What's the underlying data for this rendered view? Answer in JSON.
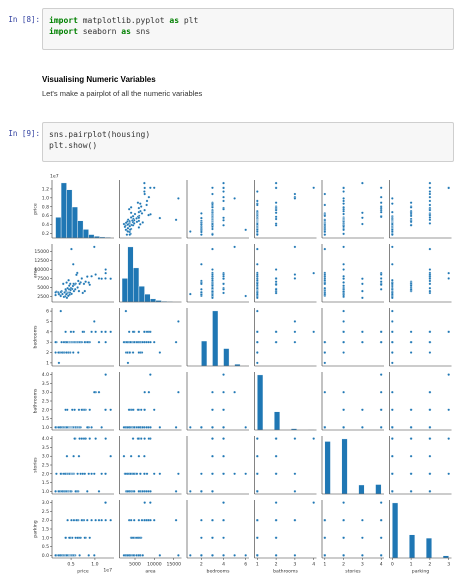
{
  "cells": [
    {
      "prompt": "In [8]:",
      "code": [
        [
          {
            "text": "import",
            "style": "kw"
          },
          {
            "text": " matplotlib.pyplot "
          },
          {
            "text": "as",
            "style": "kw"
          },
          {
            "text": " plt"
          }
        ],
        [
          {
            "text": "import",
            "style": "kw"
          },
          {
            "text": " seaborn "
          },
          {
            "text": "as",
            "style": "kw"
          },
          {
            "text": " sns"
          }
        ]
      ]
    },
    {
      "heading": "Visualising Numeric Variables",
      "text": "Let's make a pairplot of all the numeric variables"
    },
    {
      "prompt": "In [9]:",
      "code": [
        [
          {
            "text": "sns.pairplot(housing)"
          }
        ],
        [
          {
            "text": "plt.show()"
          }
        ]
      ]
    }
  ],
  "chart_data": {
    "type": "pairplot",
    "color": "#1f77b4",
    "offset_label": "1e7",
    "variables": [
      {
        "label": "price",
        "lim": [
          0.1,
          1.4
        ],
        "xticks": [
          0.5,
          {
            "value": 1,
            "label": "1.0"
          }
        ],
        "yticks": [
          0.2,
          0.4,
          0.6,
          0.8,
          {
            "value": 1,
            "label": "1.0"
          },
          1.2
        ]
      },
      {
        "label": "area",
        "lim": [
          1000,
          17000
        ],
        "xticks": [
          5000,
          10000,
          15000
        ],
        "yticks": [
          2500,
          5000,
          7500,
          10000,
          12500,
          15000
        ]
      },
      {
        "label": "bedrooms",
        "lim": [
          0.7,
          6.3
        ],
        "xticks": [
          2,
          4,
          6
        ],
        "yticks": [
          1,
          2,
          3,
          4,
          5,
          6
        ]
      },
      {
        "label": "bathrooms",
        "lim": [
          0.85,
          4.15
        ],
        "xticks": [
          1,
          2,
          3,
          4
        ],
        "yticks": [
          {
            "value": 1,
            "label": "1.0"
          },
          1.5,
          {
            "value": 2,
            "label": "2.0"
          },
          2.5,
          {
            "value": 3,
            "label": "3.0"
          },
          3.5,
          {
            "value": 4,
            "label": "4.0"
          }
        ]
      },
      {
        "label": "stories",
        "lim": [
          0.85,
          4.15
        ],
        "xticks": [
          1,
          2,
          3,
          4
        ],
        "yticks": [
          {
            "value": 1,
            "label": "1.0"
          },
          1.5,
          {
            "value": 2,
            "label": "2.0"
          },
          2.5,
          {
            "value": 3,
            "label": "3.0"
          },
          3.5,
          {
            "value": 4,
            "label": "4.0"
          }
        ]
      },
      {
        "label": "parking",
        "lim": [
          -0.15,
          3.15
        ],
        "xticks": [
          0,
          1,
          2,
          3
        ],
        "yticks": [
          {
            "value": 0,
            "label": "0.0"
          },
          0.5,
          {
            "value": 1,
            "label": "1.0"
          },
          1.5,
          {
            "value": 2,
            "label": "2.0"
          },
          2.5,
          {
            "value": 3,
            "label": "3.0"
          }
        ]
      }
    ],
    "histograms": [
      {
        "bins": [
          0.175,
          0.2905,
          0.406,
          0.5215,
          0.637,
          0.7525,
          0.868,
          0.9835,
          1.099,
          1.2145,
          1.33
        ],
        "counts": [
          60,
          160,
          140,
          90,
          50,
          25,
          10,
          5,
          3,
          2
        ]
      },
      {
        "bins": [
          1650,
          3105,
          4560,
          6015,
          7470,
          8925,
          10380,
          11835,
          13290,
          14745,
          16200
        ],
        "counts": [
          90,
          210,
          130,
          60,
          30,
          12,
          6,
          3,
          2,
          1
        ]
      },
      {
        "bins": [
          1,
          1.5,
          2,
          2.5,
          3,
          3.5,
          4,
          4.5,
          5,
          5.5,
          6
        ],
        "counts": [
          2,
          0,
          136,
          0,
          300,
          0,
          95,
          0,
          10,
          2
        ]
      },
      {
        "bins": [
          1,
          1.3,
          1.6,
          1.9,
          2.2,
          2.5,
          2.8,
          3.1,
          3.4,
          3.7,
          4
        ],
        "counts": [
          401,
          0,
          0,
          133,
          0,
          0,
          10,
          0,
          0,
          1
        ]
      },
      {
        "bins": [
          1,
          1.3,
          1.6,
          1.9,
          2.2,
          2.5,
          2.8,
          3.1,
          3.4,
          3.7,
          4
        ],
        "counts": [
          227,
          0,
          0,
          238,
          0,
          0,
          39,
          0,
          0,
          41
        ]
      },
      {
        "bins": [
          0,
          0.3,
          0.6,
          0.9,
          1.2,
          1.5,
          1.8,
          2.1,
          2.4,
          2.7,
          3
        ],
        "counts": [
          299,
          0,
          0,
          126,
          0,
          0,
          108,
          0,
          0,
          12
        ]
      }
    ],
    "rows": [
      [
        1.33,
        7420,
        4,
        2,
        3,
        2
      ],
      [
        1.225,
        8960,
        4,
        4,
        4,
        3
      ],
      [
        1.225,
        9960,
        3,
        2,
        2,
        2
      ],
      [
        1.2215,
        7500,
        4,
        2,
        2,
        3
      ],
      [
        1.141,
        7420,
        4,
        1,
        2,
        2
      ],
      [
        1.085,
        7500,
        3,
        3,
        1,
        2
      ],
      [
        1.015,
        8580,
        4,
        3,
        4,
        2
      ],
      [
        0.987,
        16200,
        5,
        3,
        2,
        0
      ],
      [
        0.93,
        8100,
        4,
        1,
        2,
        2
      ],
      [
        0.891,
        5750,
        3,
        2,
        4,
        1
      ],
      [
        0.87,
        6360,
        3,
        1,
        2,
        0
      ],
      [
        0.84,
        8000,
        3,
        1,
        1,
        2
      ],
      [
        0.805,
        6600,
        3,
        2,
        4,
        1
      ],
      [
        0.7875,
        4000,
        3,
        2,
        2,
        1
      ],
      [
        0.77,
        6000,
        4,
        2,
        4,
        2
      ],
      [
        0.745,
        3500,
        4,
        2,
        2,
        2
      ],
      [
        0.7245,
        7480,
        3,
        2,
        4,
        2
      ],
      [
        0.7,
        6400,
        3,
        1,
        2,
        1
      ],
      [
        0.679,
        6000,
        3,
        1,
        4,
        0
      ],
      [
        0.665,
        4000,
        3,
        2,
        3,
        1
      ],
      [
        0.651,
        6800,
        2,
        1,
        1,
        2
      ],
      [
        0.637,
        5000,
        3,
        1,
        2,
        1
      ],
      [
        0.63,
        9000,
        3,
        1,
        1,
        2
      ],
      [
        0.6125,
        8500,
        3,
        1,
        1,
        2
      ],
      [
        0.595,
        6060,
        3,
        1,
        1,
        1
      ],
      [
        0.5873,
        4500,
        3,
        1,
        4,
        0
      ],
      [
        0.574,
        5800,
        3,
        2,
        4,
        0
      ],
      [
        0.56,
        4000,
        3,
        1,
        2,
        2
      ],
      [
        0.553,
        6000,
        4,
        1,
        3,
        0
      ],
      [
        0.546,
        11410,
        2,
        1,
        2,
        0
      ],
      [
        0.539,
        5400,
        3,
        1,
        2,
        0
      ],
      [
        0.525,
        4600,
        3,
        2,
        2,
        1
      ],
      [
        0.511,
        3240,
        3,
        1,
        2,
        0
      ],
      [
        0.5075,
        15600,
        3,
        1,
        1,
        2
      ],
      [
        0.497,
        4800,
        4,
        1,
        2,
        0
      ],
      [
        0.49,
        4320,
        3,
        1,
        2,
        1
      ],
      [
        0.483,
        6000,
        2,
        1,
        1,
        1
      ],
      [
        0.476,
        3600,
        3,
        1,
        2,
        0
      ],
      [
        0.469,
        3000,
        3,
        1,
        2,
        0
      ],
      [
        0.462,
        5500,
        3,
        1,
        2,
        1
      ],
      [
        0.455,
        4500,
        2,
        1,
        1,
        0
      ],
      [
        0.448,
        7000,
        3,
        1,
        1,
        0
      ],
      [
        0.441,
        2700,
        2,
        1,
        1,
        0
      ],
      [
        0.434,
        3600,
        3,
        1,
        2,
        0
      ],
      [
        0.427,
        4800,
        3,
        1,
        1,
        2
      ],
      [
        0.42,
        3460,
        3,
        2,
        2,
        0
      ],
      [
        0.413,
        3300,
        2,
        1,
        1,
        0
      ],
      [
        0.406,
        6360,
        2,
        1,
        1,
        0
      ],
      [
        0.399,
        3150,
        3,
        1,
        2,
        0
      ],
      [
        0.392,
        4100,
        3,
        1,
        1,
        1
      ],
      [
        0.385,
        4500,
        4,
        2,
        2,
        1
      ],
      [
        0.378,
        2550,
        3,
        1,
        2,
        0
      ],
      [
        0.364,
        3640,
        2,
        1,
        1,
        0
      ],
      [
        0.35,
        2400,
        3,
        1,
        2,
        0
      ],
      [
        0.336,
        6000,
        2,
        1,
        1,
        0
      ],
      [
        0.3185,
        3180,
        2,
        1,
        1,
        0
      ],
      [
        0.301,
        3990,
        3,
        1,
        2,
        0
      ],
      [
        0.287,
        3750,
        2,
        1,
        1,
        0
      ],
      [
        0.259,
        3000,
        2,
        1,
        1,
        0
      ],
      [
        0.2345,
        3620,
        2,
        1,
        1,
        0
      ],
      [
        0.1925,
        3850,
        3,
        1,
        2,
        0
      ],
      [
        0.175,
        3649,
        2,
        1,
        1,
        0
      ],
      [
        0.175,
        2910,
        3,
        1,
        1,
        0
      ],
      [
        0.2835,
        2650,
        6,
        1,
        2,
        0
      ],
      [
        0.413,
        2145,
        3,
        1,
        3,
        0
      ],
      [
        0.245,
        3180,
        1,
        1,
        1,
        0
      ]
    ]
  }
}
